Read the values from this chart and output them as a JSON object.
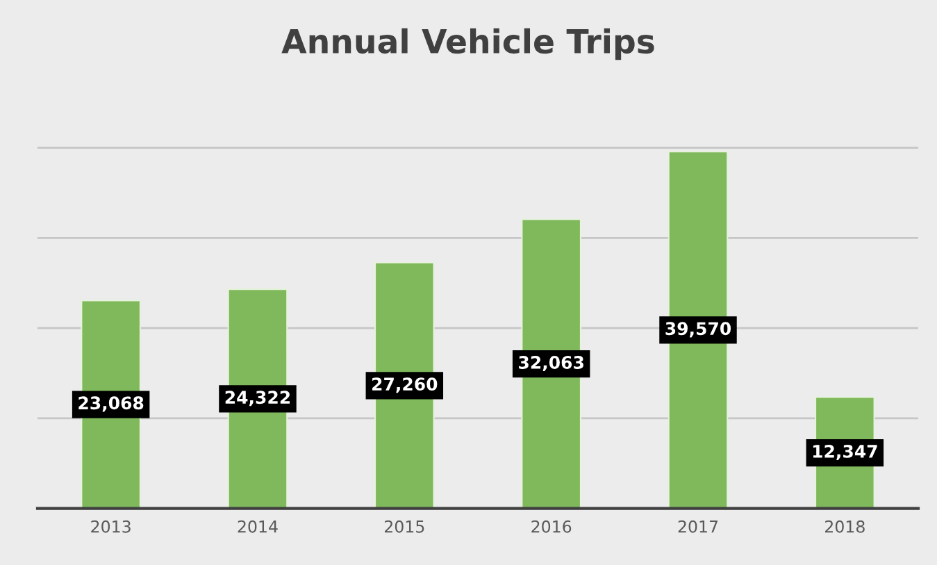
{
  "chart_data": {
    "type": "bar",
    "title": "Annual Vehicle Trips",
    "categories": [
      "2013",
      "2014",
      "2015",
      "2016",
      "2017",
      "2018"
    ],
    "values": [
      23068,
      24322,
      27260,
      32063,
      39570,
      12347
    ],
    "value_labels": [
      "23,068",
      "24,322",
      "27,260",
      "32,063",
      "39,570",
      "12,347"
    ],
    "color": "#7fb95b",
    "grid": "y",
    "tick_labels": "x"
  }
}
